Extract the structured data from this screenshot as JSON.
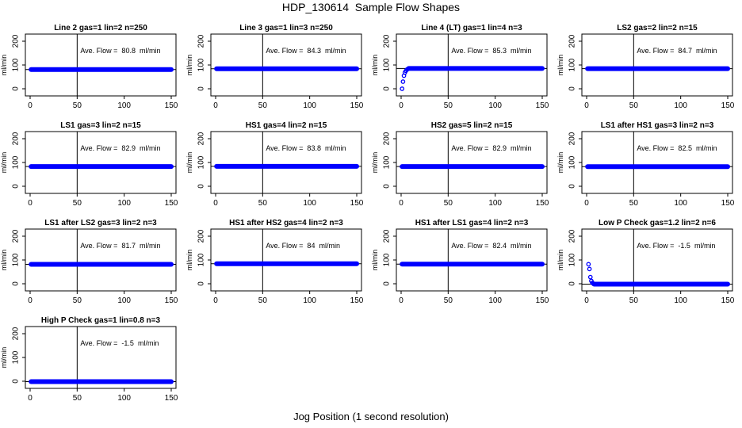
{
  "main_title": "HDP_130614  Sample Flow Shapes",
  "x_axis_title": "Jog Position (1 second resolution)",
  "y_axis_label": "ml/min",
  "x_ticks": [
    0,
    50,
    100,
    150
  ],
  "y_ticks": [
    0,
    100,
    200
  ],
  "point_color": "#0000ff",
  "chart_data": [
    {
      "type": "scatter",
      "title": "Line 2 gas=1 lin=2 n=250",
      "annotation": "Ave. Flow =  80.8  ml/min",
      "mean": 80.8,
      "xlim": [
        0,
        150
      ],
      "ylim": [
        -30,
        230
      ],
      "x": [
        1,
        150
      ],
      "y": [
        80.8,
        80.8
      ],
      "x_marker": 50,
      "series": [
        {
          "x_range": [
            1,
            150
          ],
          "value": 80.8
        }
      ]
    },
    {
      "type": "scatter",
      "title": "Line 3 gas=1 lin=3 n=250",
      "annotation": "Ave. Flow =  84.3  ml/min",
      "mean": 84.3,
      "xlim": [
        0,
        150
      ],
      "ylim": [
        -30,
        230
      ],
      "x_marker": 50,
      "series": [
        {
          "x_range": [
            1,
            150
          ],
          "value": 84.3
        }
      ]
    },
    {
      "type": "scatter",
      "title": "Line 4 (LT) gas=1 lin=4 n=3",
      "annotation": "Ave. Flow =  85.3  ml/min",
      "mean": 85.3,
      "xlim": [
        0,
        150
      ],
      "ylim": [
        -30,
        230
      ],
      "x_marker": 50,
      "series": [
        {
          "x": [
            1,
            2,
            3,
            4,
            5,
            6,
            7
          ],
          "y": [
            0,
            30,
            55,
            68,
            75,
            80,
            83
          ]
        },
        {
          "x_range": [
            8,
            150
          ],
          "value": 85.3
        }
      ]
    },
    {
      "type": "scatter",
      "title": "LS2 gas=2 lin=2 n=15",
      "annotation": "Ave. Flow =  84.7  ml/min",
      "mean": 84.7,
      "xlim": [
        0,
        150
      ],
      "ylim": [
        -30,
        230
      ],
      "x_marker": 50,
      "series": [
        {
          "x_range": [
            1,
            150
          ],
          "value": 84.7
        }
      ]
    },
    {
      "type": "scatter",
      "title": "LS1 gas=3 lin=2 n=15",
      "annotation": "Ave. Flow =  82.9  ml/min",
      "mean": 82.9,
      "xlim": [
        0,
        150
      ],
      "ylim": [
        -30,
        230
      ],
      "x_marker": 50,
      "series": [
        {
          "x_range": [
            1,
            150
          ],
          "value": 82.9
        }
      ]
    },
    {
      "type": "scatter",
      "title": "HS1 gas=4 lin=2 n=15",
      "annotation": "Ave. Flow =  83.8  ml/min",
      "mean": 83.8,
      "xlim": [
        0,
        150
      ],
      "ylim": [
        -30,
        230
      ],
      "x_marker": 50,
      "series": [
        {
          "x_range": [
            1,
            150
          ],
          "value": 83.8
        }
      ]
    },
    {
      "type": "scatter",
      "title": "HS2 gas=5 lin=2 n=15",
      "annotation": "Ave. Flow =  82.9  ml/min",
      "mean": 82.9,
      "xlim": [
        0,
        150
      ],
      "ylim": [
        -30,
        230
      ],
      "x_marker": 50,
      "series": [
        {
          "x_range": [
            1,
            150
          ],
          "value": 82.9
        }
      ]
    },
    {
      "type": "scatter",
      "title": "LS1 after HS1 gas=3 lin=2 n=3",
      "annotation": "Ave. Flow =  82.5  ml/min",
      "mean": 82.5,
      "xlim": [
        0,
        150
      ],
      "ylim": [
        -30,
        230
      ],
      "x_marker": 50,
      "series": [
        {
          "x_range": [
            1,
            150
          ],
          "value": 82.5
        }
      ]
    },
    {
      "type": "scatter",
      "title": "LS1 after LS2 gas=3 lin=2 n=3",
      "annotation": "Ave. Flow =  81.7  ml/min",
      "mean": 81.7,
      "xlim": [
        0,
        150
      ],
      "ylim": [
        -30,
        230
      ],
      "x_marker": 50,
      "series": [
        {
          "x_range": [
            1,
            150
          ],
          "value": 81.7
        }
      ]
    },
    {
      "type": "scatter",
      "title": "HS1 after HS2 gas=4 lin=2 n=3",
      "annotation": "Ave. Flow =  84  ml/min",
      "mean": 84,
      "xlim": [
        0,
        150
      ],
      "ylim": [
        -30,
        230
      ],
      "x_marker": 50,
      "series": [
        {
          "x_range": [
            1,
            150
          ],
          "value": 84
        }
      ]
    },
    {
      "type": "scatter",
      "title": "HS1 after LS1 gas=4 lin=2 n=3",
      "annotation": "Ave. Flow =  82.4  ml/min",
      "mean": 82.4,
      "xlim": [
        0,
        150
      ],
      "ylim": [
        -30,
        230
      ],
      "x_marker": 50,
      "series": [
        {
          "x_range": [
            1,
            150
          ],
          "value": 82.4
        }
      ]
    },
    {
      "type": "scatter",
      "title": "Low P Check gas=1.2 lin=2 n=6",
      "annotation": "Ave. Flow =  -1.5  ml/min",
      "mean": -1.5,
      "xlim": [
        0,
        150
      ],
      "ylim": [
        -30,
        230
      ],
      "x_marker": 50,
      "series": [
        {
          "x": [
            2,
            3,
            4,
            5,
            6,
            7
          ],
          "y": [
            82,
            62,
            28,
            12,
            4,
            1
          ]
        },
        {
          "x_range": [
            8,
            150
          ],
          "value": -1.5
        }
      ]
    },
    {
      "type": "scatter",
      "title": "High P Check gas=1 lin=0.8 n=3",
      "annotation": "Ave. Flow =  -1.5  ml/min",
      "mean": -1.5,
      "xlim": [
        0,
        150
      ],
      "ylim": [
        -30,
        230
      ],
      "x_marker": 50,
      "series": [
        {
          "x_range": [
            1,
            150
          ],
          "value": -1.5
        }
      ]
    }
  ]
}
